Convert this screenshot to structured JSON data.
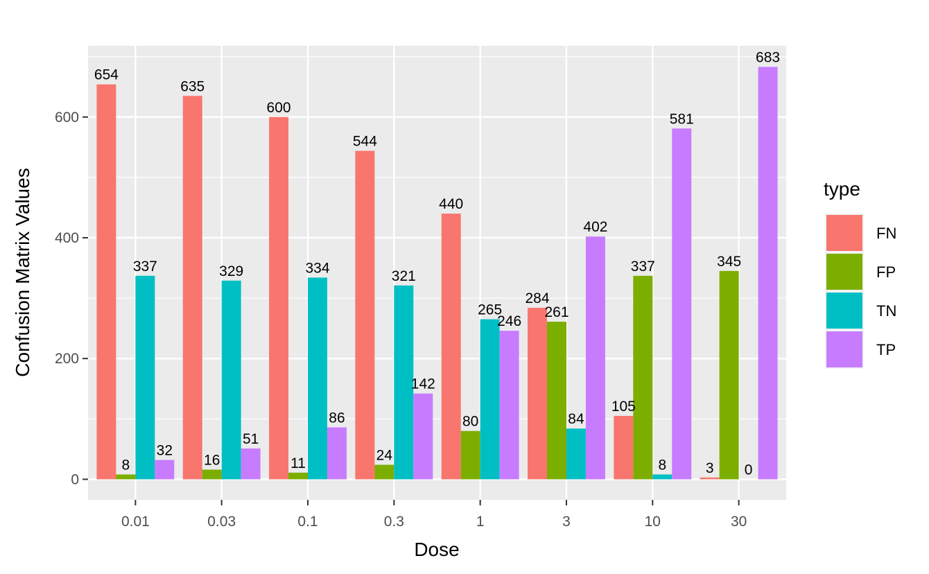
{
  "chart_data": {
    "type": "bar",
    "title": "",
    "xlabel": "Dose",
    "ylabel": "Confusion Matrix Values",
    "categories": [
      "0.01",
      "0.03",
      "0.1",
      "0.3",
      "1",
      "3",
      "10",
      "30"
    ],
    "series": [
      {
        "name": "FN",
        "color": "#F8766D",
        "values": [
          654,
          635,
          600,
          544,
          440,
          284,
          105,
          3
        ]
      },
      {
        "name": "FP",
        "color": "#7CAE00",
        "values": [
          8,
          16,
          11,
          24,
          80,
          261,
          337,
          345
        ]
      },
      {
        "name": "TN",
        "color": "#00BFC4",
        "values": [
          337,
          329,
          334,
          321,
          265,
          84,
          8,
          0
        ]
      },
      {
        "name": "TP",
        "color": "#C77CFF",
        "values": [
          32,
          51,
          86,
          142,
          246,
          402,
          581,
          683
        ]
      }
    ],
    "ylim": [
      -34,
      718
    ],
    "yticks": [
      0,
      200,
      400,
      600
    ],
    "grid": true,
    "legend": {
      "title": "type",
      "placement": "right"
    }
  }
}
